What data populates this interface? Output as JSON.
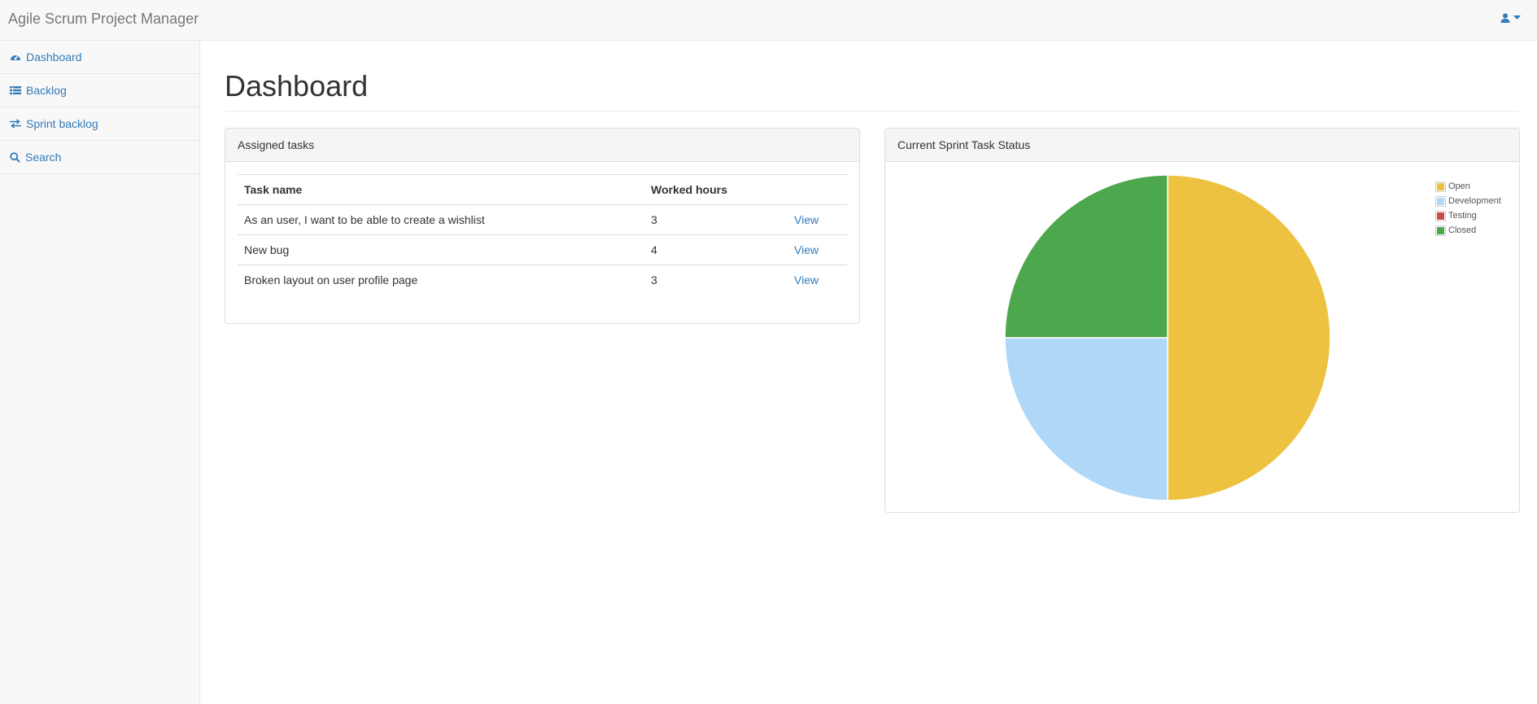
{
  "navbar": {
    "brand": "Agile Scrum Project Manager"
  },
  "sidebar": {
    "items": [
      {
        "label": "Dashboard",
        "icon": "dashboard-icon"
      },
      {
        "label": "Backlog",
        "icon": "list-icon"
      },
      {
        "label": "Sprint backlog",
        "icon": "transfer-icon"
      },
      {
        "label": "Search",
        "icon": "search-icon"
      }
    ]
  },
  "page": {
    "title": "Dashboard"
  },
  "tasks_panel": {
    "heading": "Assigned tasks",
    "columns": [
      "Task name",
      "Worked hours",
      ""
    ],
    "rows": [
      {
        "name": "As an user, I want to be able to create a wishlist",
        "hours": "3",
        "action": "View"
      },
      {
        "name": "New bug",
        "hours": "4",
        "action": "View"
      },
      {
        "name": "Broken layout on user profile page",
        "hours": "3",
        "action": "View"
      }
    ]
  },
  "chart_panel": {
    "heading": "Current Sprint Task Status"
  },
  "colors": {
    "link": "#337ab7",
    "open": "#edc240",
    "development": "#afd8f8",
    "testing": "#cb4b4b",
    "closed": "#4da74d"
  },
  "chart_data": {
    "type": "pie",
    "title": "",
    "categories": [
      "Open",
      "Development",
      "Testing",
      "Closed"
    ],
    "values": [
      2,
      1,
      0,
      1
    ],
    "colors": [
      "#edc240",
      "#afd8f8",
      "#cb4b4b",
      "#4da74d"
    ],
    "legend": "top-right"
  }
}
